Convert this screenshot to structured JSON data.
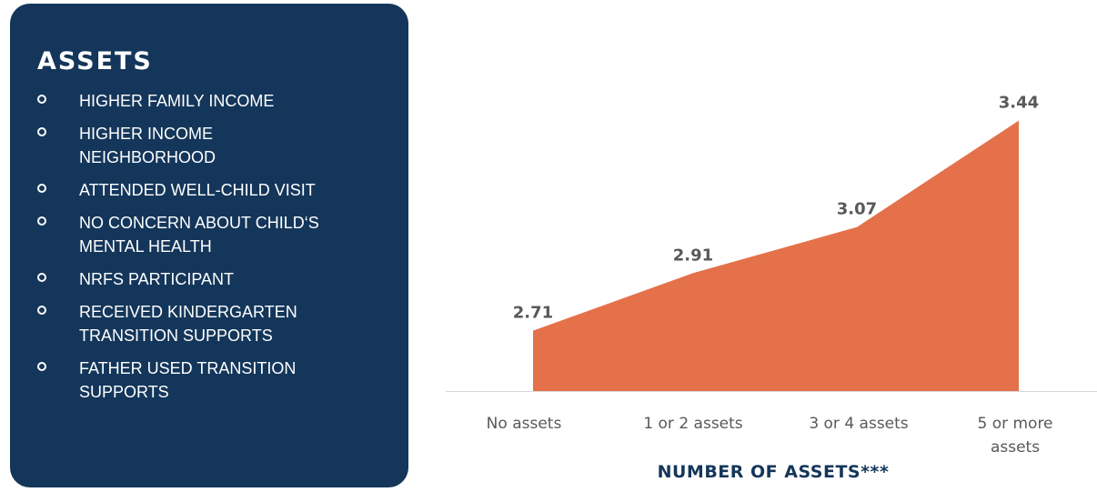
{
  "panel": {
    "title": "ASSETS",
    "items": [
      "HIGHER FAMILY INCOME",
      "HIGHER INCOME NEIGHBORHOOD",
      "ATTENDED WELL-CHILD VISIT",
      "NO CONCERN ABOUT CHILD‘S MENTAL HEALTH",
      "NRFS PARTICIPANT",
      "RECEIVED KINDERGARTEN TRANSITION SUPPORTS",
      "FATHER USED TRANSITION SUPPORTS"
    ],
    "colors": {
      "background": "#14365a",
      "text": "#ffffff"
    }
  },
  "chart_data": {
    "type": "area",
    "categories": [
      "No assets",
      "1 or 2 assets",
      "3 or 4 assets",
      "5 or more assets"
    ],
    "values": [
      2.71,
      2.91,
      3.07,
      3.44
    ],
    "data_labels": [
      "2.71",
      "2.91",
      "3.07",
      "3.44"
    ],
    "xlabel": "NUMBER OF ASSETS***",
    "ylabel": "",
    "ylim": [
      2.5,
      3.6
    ],
    "grid": false,
    "legend": "none",
    "colors": {
      "fill": "#e4714a",
      "label": "#595959",
      "axis": "#d9d9d9",
      "xlabel": "#14365a"
    }
  }
}
